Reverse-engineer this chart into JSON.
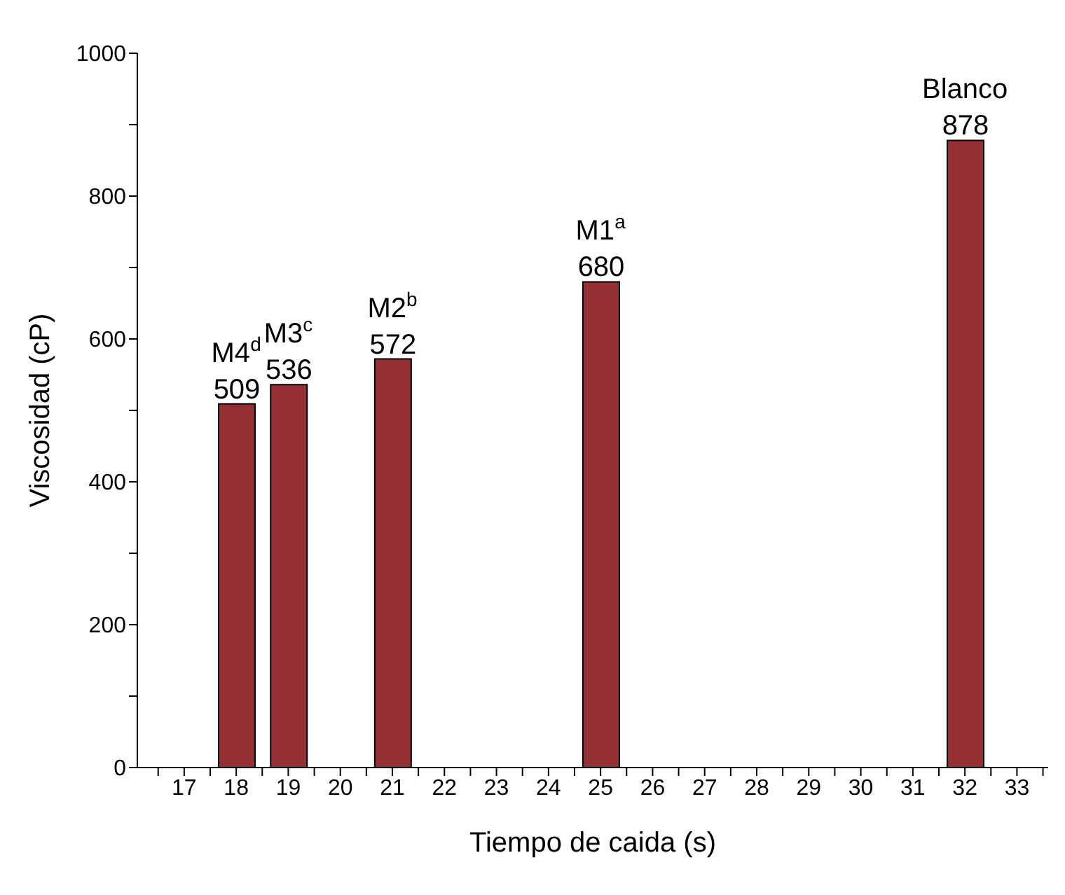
{
  "chart_data": {
    "type": "bar",
    "xlabel": "Tiempo de caida (s)",
    "ylabel": "Viscosidad (cP)",
    "x": [
      18,
      19,
      21,
      25,
      32
    ],
    "values": [
      509,
      536,
      572,
      680,
      878
    ],
    "color": "#943034",
    "data_labels": true,
    "xlim": [
      16.1,
      33.6
    ],
    "xticks": [
      {
        "value": 16.5,
        "label": null
      },
      17,
      {
        "value": 17.5,
        "label": null
      },
      18,
      {
        "value": 18.5,
        "label": null
      },
      19,
      {
        "value": 19.5,
        "label": null
      },
      20,
      {
        "value": 20.5,
        "label": null
      },
      21,
      {
        "value": 21.5,
        "label": null
      },
      22,
      {
        "value": 22.5,
        "label": null
      },
      23,
      {
        "value": 23.5,
        "label": null
      },
      24,
      {
        "value": 24.5,
        "label": null
      },
      25,
      {
        "value": 25.5,
        "label": null
      },
      26,
      {
        "value": 26.5,
        "label": null
      },
      27,
      {
        "value": 27.5,
        "label": null
      },
      28,
      {
        "value": 28.5,
        "label": null
      },
      29,
      {
        "value": 29.5,
        "label": null
      },
      30,
      {
        "value": 30.5,
        "label": null
      },
      31,
      {
        "value": 31.5,
        "label": null
      },
      32,
      {
        "value": 32.5,
        "label": null
      },
      33,
      {
        "value": 33.5,
        "label": null
      }
    ],
    "ylim": [
      0,
      1000
    ],
    "yticks": [
      0,
      {
        "value": 100,
        "label": null
      },
      200,
      {
        "value": 300,
        "label": null
      },
      400,
      {
        "value": 500,
        "label": null
      },
      600,
      {
        "value": 700,
        "label": null
      },
      800,
      {
        "value": 900,
        "label": null
      },
      1000
    ],
    "grid": false,
    "annotations": [
      {
        "text": "M4$^{d}$",
        "x": 18,
        "y": 509
      },
      {
        "text": "M3$^{c}$",
        "x": 19,
        "y": 536
      },
      {
        "text": "M2$^{b}$",
        "x": 21,
        "y": 572
      },
      {
        "text": "M1$^{a}$",
        "x": 25,
        "y": 680
      },
      {
        "text": "Blanco",
        "x": 32,
        "y": 878
      }
    ]
  }
}
